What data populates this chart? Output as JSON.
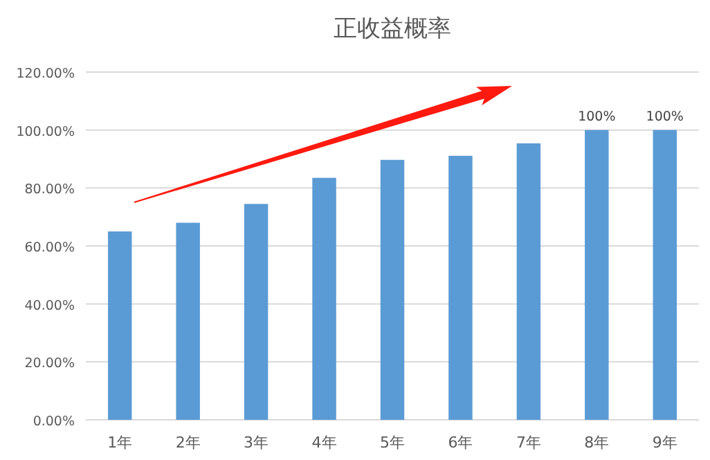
{
  "chart_data": {
    "type": "bar",
    "title": "正收益概率",
    "categories": [
      "1年",
      "2年",
      "3年",
      "4年",
      "5年",
      "6年",
      "7年",
      "8年",
      "9年"
    ],
    "values": [
      65,
      68,
      74.5,
      83.5,
      89.7,
      91.1,
      95.4,
      100,
      100
    ],
    "value_labels": [
      null,
      null,
      null,
      null,
      null,
      null,
      null,
      "100%",
      "100%"
    ],
    "color": "#5b9bd5",
    "ylim": [
      0,
      120
    ],
    "yticks": [
      {
        "value": 0,
        "label": "0.00%"
      },
      {
        "value": 20,
        "label": "20.00%"
      },
      {
        "value": 40,
        "label": "40.00%"
      },
      {
        "value": 60,
        "label": "60.00%"
      },
      {
        "value": 80,
        "label": "80.00%"
      },
      {
        "value": 100,
        "label": "100.00%"
      },
      {
        "value": 120,
        "label": "120.00%"
      }
    ],
    "grid": "y"
  }
}
